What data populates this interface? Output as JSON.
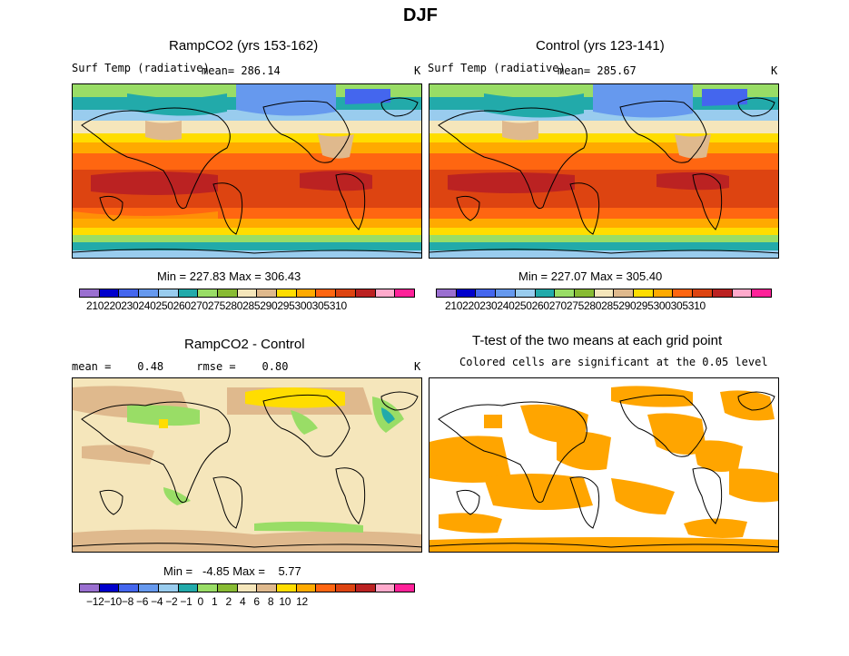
{
  "figure": {
    "title": "DJF"
  },
  "panels": {
    "ramp": {
      "title": "RampCO2 (yrs 153-162)",
      "variable": "Surf Temp (radiative)",
      "mean_text": "mean= 286.14",
      "unit": "K",
      "minmax": "Min = 227.83 Max = 306.43"
    },
    "control": {
      "title": "Control (yrs 123-141)",
      "variable": "Surf Temp (radiative)",
      "mean_text": "mean= 285.67",
      "unit": "K",
      "minmax": "Min = 227.07 Max = 305.40"
    },
    "diff": {
      "title": "RampCO2 - Control",
      "stats": "mean =    0.48     rmse =    0.80",
      "unit": "K",
      "minmax": "Min =   -4.85 Max =    5.77"
    },
    "ttest": {
      "title": "T-test of the two means at each grid point",
      "subtitle": "Colored cells are significant at the 0.05 level"
    }
  },
  "colorbars": {
    "abs_labels": "210220230240250260270275280285290295300305310",
    "diff_labels": "−12−10−8 −6 −4 −2 −1  0   1   2   4   6   8  10  12",
    "colors": [
      "#9a6fd0",
      "#0000cc",
      "#4466ee",
      "#6699ee",
      "#99ccee",
      "#22aaaa",
      "#99dd66",
      "#88bb33",
      "#f5e6bb",
      "#dfb98d",
      "#ffdd00",
      "#ffaa00",
      "#ff6611",
      "#dd4411",
      "#bb2222",
      "#ffaacc",
      "#ff2299"
    ]
  },
  "colors": {
    "significant": "#ffa500",
    "diff_background": "#f5e6bb"
  }
}
